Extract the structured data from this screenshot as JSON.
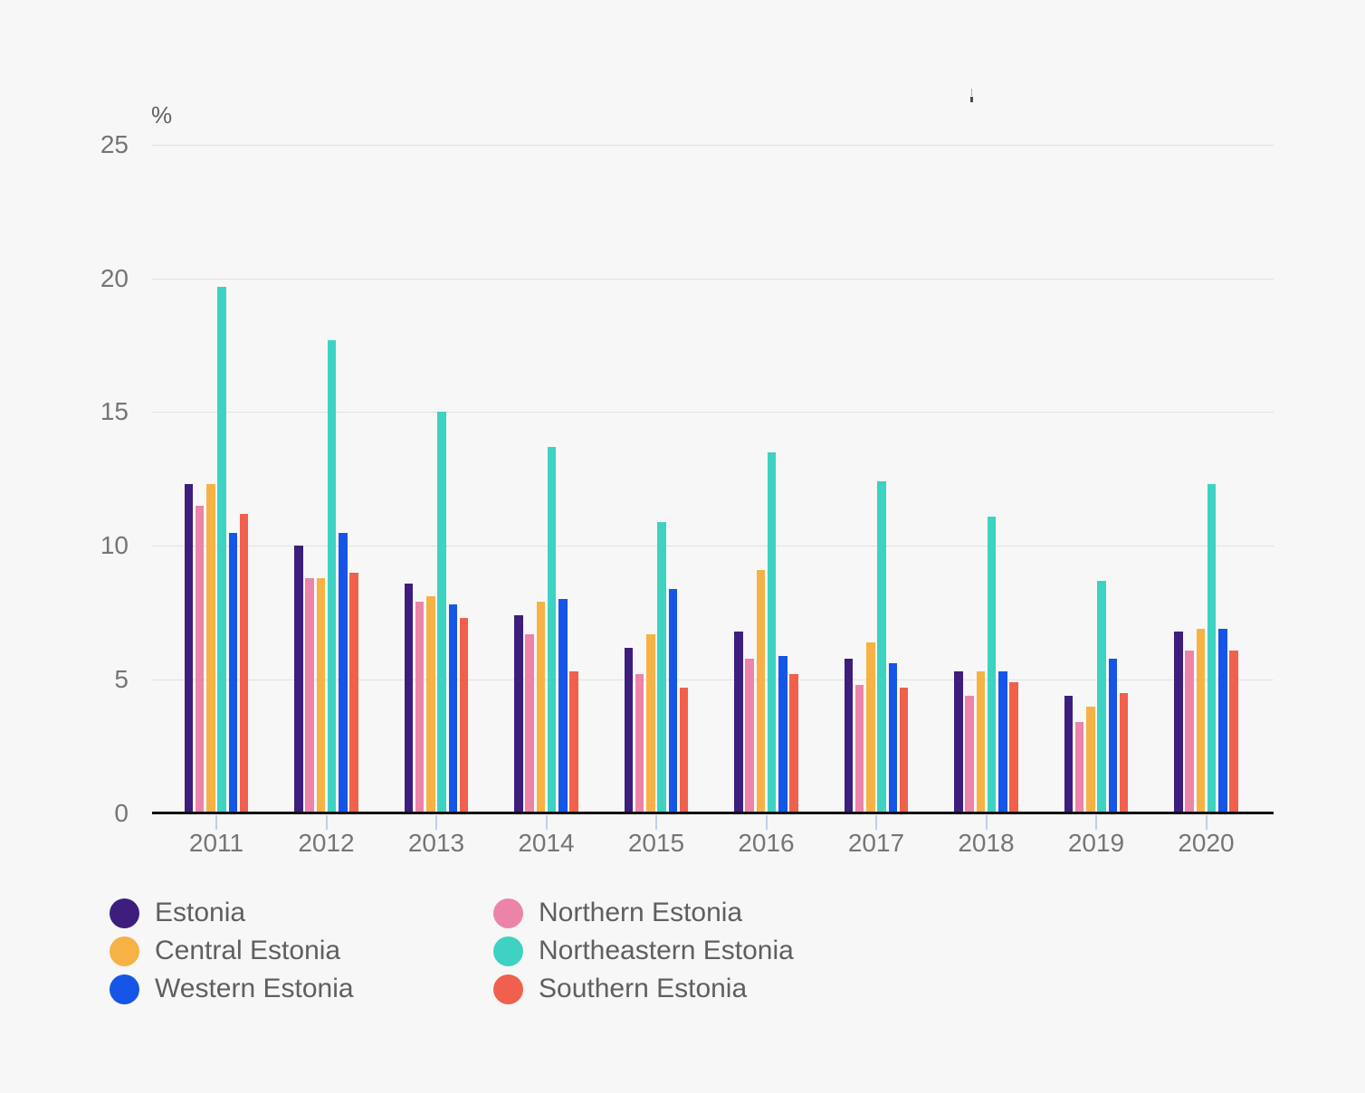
{
  "chart_data": {
    "type": "bar",
    "title": "",
    "unit_label": "%",
    "categories": [
      "2011",
      "2012",
      "2013",
      "2014",
      "2015",
      "2016",
      "2017",
      "2018",
      "2019",
      "2020"
    ],
    "series": [
      {
        "name": "Estonia",
        "color": "#3d1e7d",
        "values": [
          12.3,
          10.0,
          8.6,
          7.4,
          6.2,
          6.8,
          5.8,
          5.3,
          4.4,
          6.8
        ]
      },
      {
        "name": "Northern Estonia",
        "color": "#ec84a9",
        "values": [
          11.5,
          8.8,
          7.9,
          6.7,
          5.2,
          5.8,
          4.8,
          4.4,
          3.4,
          6.1
        ]
      },
      {
        "name": "Central Estonia",
        "color": "#f6b245",
        "values": [
          12.3,
          8.8,
          8.1,
          7.9,
          6.7,
          9.1,
          6.4,
          5.3,
          4.0,
          6.9
        ]
      },
      {
        "name": "Northeastern Estonia",
        "color": "#3ed2c2",
        "values": [
          19.7,
          17.7,
          15.0,
          13.7,
          10.9,
          13.5,
          12.4,
          11.1,
          8.7,
          12.3
        ]
      },
      {
        "name": "Western Estonia",
        "color": "#1556e8",
        "values": [
          10.5,
          10.5,
          7.8,
          8.0,
          8.4,
          5.9,
          5.6,
          5.3,
          5.8,
          6.9
        ]
      },
      {
        "name": "Southern Estonia",
        "color": "#f0604c",
        "values": [
          11.2,
          9.0,
          7.3,
          5.3,
          4.7,
          5.2,
          4.7,
          4.9,
          4.5,
          6.1
        ]
      }
    ],
    "y_axis": {
      "min": 0,
      "max": 25,
      "tick_interval": 5,
      "tick_labels": [
        "0",
        "5",
        "10",
        "15",
        "20",
        "25"
      ]
    },
    "legend_position": "bottom-left",
    "legend_column_order": [
      0,
      2,
      4,
      1,
      3,
      5
    ],
    "grid": true
  },
  "colors": {
    "background": "#f7f7f7",
    "gridline": "#e1e1e1",
    "axis_line": "#111111",
    "tick_mark": "#c3cde9",
    "axis_text": "#757575",
    "legend_text": "#5f5f5f"
  }
}
